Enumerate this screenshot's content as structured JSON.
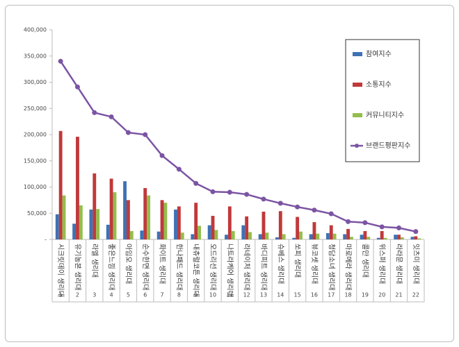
{
  "chart_data": {
    "type": "bar-line",
    "categories": [
      "시크릿데이 생리대",
      "유기농본 생리대",
      "라엘 생리대",
      "좋은느낌 생리대",
      "아임오 생리대",
      "순수한면 생리대",
      "화이트 생리대",
      "한나패드 생리대",
      "내츄럴코튼 생리대",
      "오드리선 생리대",
      "나트라케어 생리대",
      "라네이처 생리대",
      "바디피트 생리대",
      "슈베스 생리대",
      "쏘피 생리대",
      "뷰코셋 생리대",
      "청담소녀 생리대",
      "마로메라 생리대",
      "콜만 생리대",
      "위스퍼 생리대",
      "라라문 생리대",
      "잇츠미 생리대"
    ],
    "ranks": [
      1,
      2,
      3,
      4,
      5,
      6,
      7,
      8,
      9,
      10,
      11,
      12,
      13,
      14,
      15,
      16,
      17,
      18,
      19,
      20,
      21,
      22
    ],
    "series": [
      {
        "name": "참여지수",
        "type": "bar",
        "color": "#3f72b4",
        "values": [
          48000,
          30000,
          57000,
          28000,
          111000,
          17000,
          15000,
          57000,
          10000,
          27000,
          9000,
          27000,
          10000,
          4000,
          3000,
          10000,
          12000,
          10000,
          9000,
          3000,
          9000,
          5000
        ]
      },
      {
        "name": "소통지수",
        "type": "bar",
        "color": "#c0393b",
        "values": [
          207000,
          196000,
          126000,
          116000,
          75000,
          98000,
          75000,
          63000,
          70000,
          45000,
          63000,
          44000,
          53000,
          54000,
          43000,
          33000,
          27000,
          20000,
          16000,
          16000,
          9000,
          6000
        ]
      },
      {
        "name": "커뮤니티지수",
        "type": "bar",
        "color": "#94bd4c",
        "values": [
          84000,
          65000,
          58000,
          90000,
          16000,
          84000,
          70000,
          13000,
          26000,
          18000,
          16000,
          14000,
          13000,
          10000,
          15000,
          11000,
          11000,
          5000,
          5000,
          3000,
          4000,
          2000
        ]
      },
      {
        "name": "브랜드평판지수",
        "type": "line",
        "color": "#7b54a3",
        "values": [
          340000,
          291000,
          242000,
          234000,
          204000,
          200000,
          160000,
          134000,
          107000,
          91000,
          90000,
          86000,
          77000,
          69000,
          62000,
          56000,
          49000,
          34000,
          32000,
          24000,
          22000,
          15000
        ]
      }
    ],
    "ylim": [
      0,
      400000
    ],
    "yticks": [
      {
        "value": 0,
        "label": "-"
      },
      {
        "value": 50000,
        "label": "50,000"
      },
      {
        "value": 100000,
        "label": "100,000"
      },
      {
        "value": 150000,
        "label": "150,000"
      },
      {
        "value": 200000,
        "label": "200,000"
      },
      {
        "value": 250000,
        "label": "250,000"
      },
      {
        "value": 300000,
        "label": "300,000"
      },
      {
        "value": 350000,
        "label": "350,000"
      },
      {
        "value": 400000,
        "label": "400,000"
      }
    ],
    "grid": false,
    "legend": "right"
  }
}
